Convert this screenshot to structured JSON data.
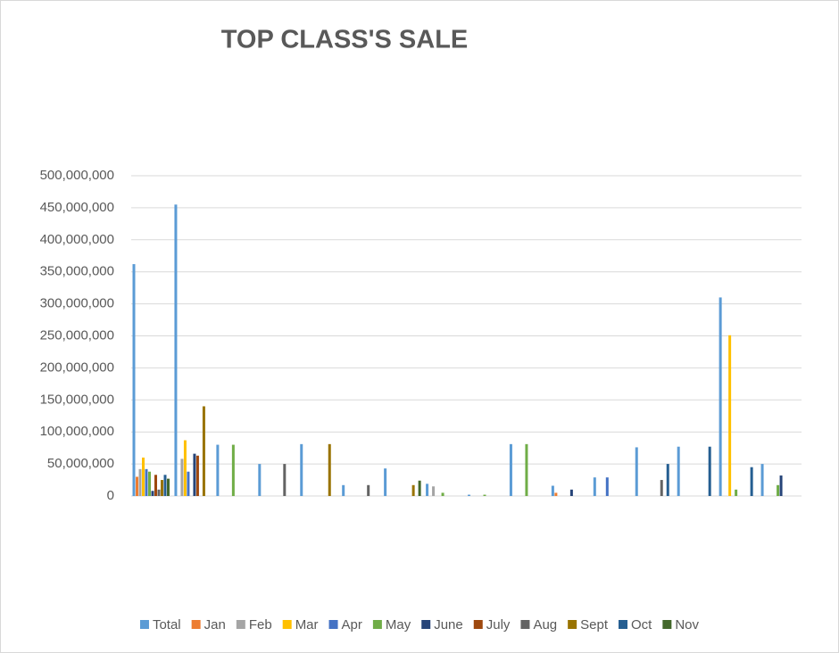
{
  "chart_data": {
    "type": "bar",
    "title": "TOP CLASS'S SALE",
    "categories": [
      null,
      null,
      null,
      null,
      null,
      null,
      null,
      null,
      null,
      null,
      null,
      null,
      null,
      null,
      null,
      null
    ],
    "series": [
      {
        "name": "Total",
        "color": "#5b9bd5",
        "values": [
          362000000,
          455000000,
          80000000,
          50000000,
          81000000,
          17000000,
          43000000,
          19000000,
          2000000,
          81000000,
          16000000,
          29000000,
          76000000,
          77000000,
          310000000,
          50000000
        ]
      },
      {
        "name": "Jan",
        "color": "#ed7d31",
        "values": [
          30000000,
          0,
          0,
          0,
          0,
          0,
          0,
          0,
          0,
          0,
          5000000,
          0,
          0,
          0,
          0,
          0
        ]
      },
      {
        "name": "Feb",
        "color": "#a5a5a5",
        "values": [
          42000000,
          58000000,
          0,
          0,
          0,
          0,
          0,
          15000000,
          0,
          0,
          0,
          0,
          0,
          0,
          0,
          0
        ]
      },
      {
        "name": "Mar",
        "color": "#ffc000",
        "values": [
          60000000,
          87000000,
          0,
          0,
          0,
          0,
          0,
          0,
          0,
          0,
          0,
          0,
          0,
          0,
          251000000,
          0
        ]
      },
      {
        "name": "Apr",
        "color": "#4472c4",
        "values": [
          42000000,
          38000000,
          0,
          0,
          0,
          0,
          0,
          0,
          0,
          0,
          0,
          29000000,
          0,
          0,
          0,
          0
        ]
      },
      {
        "name": "May",
        "color": "#70ad47",
        "values": [
          38000000,
          0,
          80000000,
          0,
          0,
          0,
          0,
          5000000,
          2000000,
          81000000,
          0,
          0,
          0,
          0,
          10000000,
          17000000
        ]
      },
      {
        "name": "June",
        "color": "#264478",
        "values": [
          8000000,
          66000000,
          0,
          0,
          0,
          0,
          0,
          0,
          0,
          0,
          10000000,
          0,
          0,
          0,
          0,
          32000000
        ]
      },
      {
        "name": "July",
        "color": "#9e480e",
        "values": [
          33000000,
          63000000,
          0,
          0,
          0,
          0,
          0,
          0,
          0,
          0,
          0,
          0,
          0,
          0,
          0,
          0
        ]
      },
      {
        "name": "Aug",
        "color": "#636363",
        "values": [
          10000000,
          0,
          0,
          50000000,
          0,
          17000000,
          0,
          0,
          0,
          0,
          0,
          0,
          25000000,
          0,
          0,
          0
        ]
      },
      {
        "name": "Sept",
        "color": "#997300",
        "values": [
          25000000,
          140000000,
          0,
          0,
          81000000,
          0,
          17000000,
          0,
          0,
          0,
          0,
          0,
          0,
          0,
          0,
          0
        ]
      },
      {
        "name": "Oct",
        "color": "#255e91",
        "values": [
          33000000,
          0,
          0,
          0,
          0,
          0,
          0,
          0,
          0,
          0,
          0,
          0,
          50000000,
          77000000,
          45000000,
          0
        ]
      },
      {
        "name": "Nov",
        "color": "#43682b",
        "values": [
          27000000,
          0,
          0,
          0,
          0,
          0,
          24000000,
          0,
          0,
          0,
          0,
          0,
          0,
          0,
          0,
          0
        ]
      }
    ],
    "ylim": [
      0,
      500000000
    ],
    "yticks": [
      0,
      {
        "value": 50000000,
        "label": "50,000,000"
      },
      {
        "value": 100000000,
        "label": "100,000,000"
      },
      {
        "value": 150000000,
        "label": "150,000,000"
      },
      {
        "value": 200000000,
        "label": "200,000,000"
      },
      {
        "value": 250000000,
        "label": "250,000,000"
      },
      {
        "value": 300000000,
        "label": "300,000,000"
      },
      {
        "value": 350000000,
        "label": "350,000,000"
      },
      {
        "value": 400000000,
        "label": "400,000,000"
      },
      {
        "value": 450000000,
        "label": "450,000,000"
      },
      {
        "value": 500000000,
        "label": "500,000,000"
      }
    ],
    "grid": true,
    "legend": "bottom"
  }
}
